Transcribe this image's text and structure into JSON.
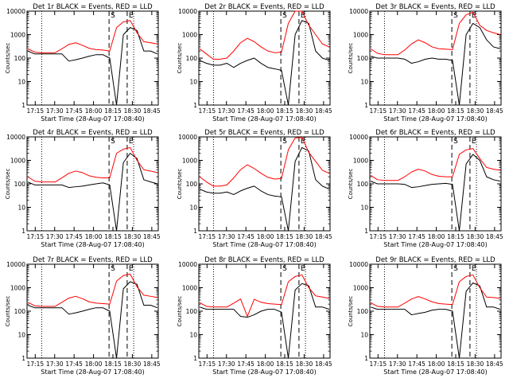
{
  "chart_data": [
    {
      "type": "line",
      "title": "Det 1r BLACK = Events, RED = LLD",
      "xlabel": "Start Time (28-Aug-07 17:08:40)",
      "ylabel": "Counts/sec",
      "yscale": "log",
      "ylim": [
        1,
        10000
      ],
      "ytick_labels": [
        "1",
        "10",
        "100",
        "1000",
        "10000"
      ],
      "xtick_labels": [
        "17:15",
        "17:30",
        "17:45",
        "18:00",
        "18:15",
        "18:30",
        "18:45"
      ],
      "xlim": [
        "17:08:40",
        "18:50:00"
      ],
      "markers": [
        {
          "label": "S",
          "time": "18:12"
        },
        {
          "label": "E",
          "time": "18:26"
        }
      ],
      "dotted_lines": [
        "17:20",
        "18:31"
      ],
      "dashed_lines": [
        "18:12",
        "18:26"
      ],
      "series": [
        {
          "color": "#000000",
          "values": [
            200,
            150,
            150,
            150,
            150,
            150,
            75,
            85,
            100,
            120,
            140,
            140,
            100,
            1,
            1000,
            2000,
            1500,
            200,
            200,
            150
          ]
        },
        {
          "color": "#ff0000",
          "values": [
            250,
            180,
            170,
            170,
            170,
            250,
            380,
            450,
            350,
            260,
            230,
            220,
            200,
            2000,
            3500,
            4000,
            1200,
            500,
            450,
            400
          ]
        }
      ]
    },
    {
      "type": "line",
      "title": "Det 2r BLACK = Events, RED = LLD",
      "xlabel": "Start Time (28-Aug-07 17:08:40)",
      "ylabel": "Counts/sec",
      "yscale": "log",
      "ylim": [
        1,
        10000
      ],
      "ytick_labels": [
        "1",
        "10",
        "100",
        "1000",
        "10000"
      ],
      "xtick_labels": [
        "17:15",
        "17:30",
        "17:45",
        "18:00",
        "18:15",
        "18:30",
        "18:45"
      ],
      "xlim": [
        "17:08:40",
        "18:50:00"
      ],
      "markers": [
        {
          "label": "S",
          "time": "18:12"
        },
        {
          "label": "E",
          "time": "18:26"
        }
      ],
      "dotted_lines": [
        "17:20",
        "18:31"
      ],
      "dashed_lines": [
        "18:12",
        "18:26"
      ],
      "series": [
        {
          "color": "#000000",
          "values": [
            80,
            60,
            50,
            50,
            60,
            40,
            60,
            80,
            100,
            60,
            40,
            35,
            30,
            1,
            1000,
            4000,
            3000,
            200,
            100,
            80
          ]
        },
        {
          "color": "#ff0000",
          "values": [
            250,
            150,
            90,
            90,
            100,
            200,
            450,
            700,
            500,
            300,
            200,
            170,
            180,
            3000,
            10000,
            10000,
            2500,
            1000,
            400,
            300
          ]
        }
      ]
    },
    {
      "type": "line",
      "title": "Det 3r BLACK = Events, RED = LLD",
      "xlabel": "Start Time (28-Aug-07 17:08:40)",
      "ylabel": "Counts/sec",
      "yscale": "log",
      "ylim": [
        1,
        10000
      ],
      "ytick_labels": [
        "1",
        "10",
        "100",
        "1000",
        "10000"
      ],
      "xtick_labels": [
        "17:15",
        "17:30",
        "17:45",
        "18:00",
        "18:15",
        "18:30",
        "18:45"
      ],
      "xlim": [
        "17:08:40",
        "18:50:00"
      ],
      "markers": [
        {
          "label": "S",
          "time": "18:12"
        },
        {
          "label": "E",
          "time": "18:26"
        }
      ],
      "dotted_lines": [
        "17:20",
        "18:31"
      ],
      "dashed_lines": [
        "18:12",
        "18:26"
      ],
      "series": [
        {
          "color": "#000000",
          "values": [
            120,
            100,
            100,
            100,
            100,
            90,
            60,
            70,
            90,
            100,
            90,
            90,
            80,
            1,
            1000,
            3000,
            2000,
            600,
            300,
            250
          ]
        },
        {
          "color": "#ff0000",
          "values": [
            250,
            160,
            140,
            140,
            140,
            220,
            400,
            600,
            450,
            300,
            250,
            240,
            230,
            3000,
            7000,
            9000,
            2500,
            1500,
            1200,
            1000
          ]
        }
      ]
    },
    {
      "type": "line",
      "title": "Det 4r BLACK = Events, RED = LLD",
      "xlabel": "Start Time (28-Aug-07 17:08:40)",
      "ylabel": "Counts/sec",
      "yscale": "log",
      "ylim": [
        1,
        10000
      ],
      "ytick_labels": [
        "1",
        "10",
        "100",
        "1000",
        "10000"
      ],
      "xtick_labels": [
        "17:15",
        "17:30",
        "17:45",
        "18:00",
        "18:15",
        "18:30",
        "18:45"
      ],
      "xlim": [
        "17:08:40",
        "18:50:00"
      ],
      "markers": [
        {
          "label": "S",
          "time": "18:12"
        },
        {
          "label": "E",
          "time": "18:26"
        }
      ],
      "dotted_lines": [
        "17:20",
        "18:31"
      ],
      "dashed_lines": [
        "18:12",
        "18:26"
      ],
      "series": [
        {
          "color": "#000000",
          "values": [
            120,
            90,
            90,
            90,
            90,
            90,
            70,
            75,
            80,
            90,
            100,
            110,
            90,
            1,
            800,
            2000,
            1200,
            150,
            120,
            100
          ]
        },
        {
          "color": "#ff0000",
          "values": [
            200,
            130,
            120,
            120,
            120,
            180,
            280,
            350,
            300,
            220,
            190,
            180,
            180,
            2000,
            3000,
            3500,
            1000,
            400,
            350,
            300
          ]
        }
      ]
    },
    {
      "type": "line",
      "title": "Det 5r BLACK = Events, RED = LLD",
      "xlabel": "Start Time (28-Aug-07 17:08:40)",
      "ylabel": "Counts/sec",
      "yscale": "log",
      "ylim": [
        1,
        10000
      ],
      "ytick_labels": [
        "1",
        "10",
        "100",
        "1000",
        "10000"
      ],
      "xtick_labels": [
        "17:15",
        "17:30",
        "17:45",
        "18:00",
        "18:15",
        "18:30",
        "18:45"
      ],
      "xlim": [
        "17:08:40",
        "18:50:00"
      ],
      "markers": [
        {
          "label": "S",
          "time": "18:12"
        },
        {
          "label": "E",
          "time": "18:26"
        }
      ],
      "dotted_lines": [
        "17:20",
        "18:31"
      ],
      "dashed_lines": [
        "18:12",
        "18:26"
      ],
      "series": [
        {
          "color": "#000000",
          "values": [
            60,
            45,
            40,
            40,
            45,
            35,
            50,
            65,
            80,
            50,
            35,
            30,
            28,
            1,
            900,
            3500,
            2500,
            150,
            80,
            60
          ]
        },
        {
          "color": "#ff0000",
          "values": [
            200,
            120,
            80,
            80,
            90,
            180,
            400,
            650,
            450,
            280,
            190,
            160,
            170,
            2800,
            9000,
            9500,
            2200,
            900,
            380,
            280
          ]
        }
      ]
    },
    {
      "type": "line",
      "title": "Det 6r BLACK = Events, RED = LLD",
      "xlabel": "Start Time (28-Aug-07 17:08:40)",
      "ylabel": "Counts/sec",
      "yscale": "log",
      "ylim": [
        1,
        10000
      ],
      "ytick_labels": [
        "1",
        "10",
        "100",
        "1000",
        "10000"
      ],
      "xtick_labels": [
        "17:15",
        "17:30",
        "17:45",
        "18:00",
        "18:15",
        "18:30",
        "18:45"
      ],
      "xlim": [
        "17:08:40",
        "18:50:00"
      ],
      "markers": [
        {
          "label": "S",
          "time": "18:12"
        },
        {
          "label": "E",
          "time": "18:26"
        }
      ],
      "dotted_lines": [
        "17:20",
        "18:31"
      ],
      "dashed_lines": [
        "18:12",
        "18:26"
      ],
      "series": [
        {
          "color": "#000000",
          "values": [
            130,
            100,
            100,
            100,
            100,
            95,
            70,
            75,
            85,
            95,
            100,
            105,
            95,
            1,
            700,
            1800,
            1000,
            200,
            150,
            130
          ]
        },
        {
          "color": "#ff0000",
          "values": [
            230,
            150,
            140,
            140,
            140,
            200,
            320,
            420,
            350,
            250,
            210,
            200,
            200,
            1800,
            2800,
            3200,
            1200,
            500,
            420,
            380
          ]
        }
      ]
    },
    {
      "type": "line",
      "title": "Det 7r BLACK = Events, RED = LLD",
      "xlabel": "Start Time (28-Aug-07 17:08:40)",
      "ylabel": "Counts/sec",
      "yscale": "log",
      "ylim": [
        1,
        10000
      ],
      "ytick_labels": [
        "1",
        "10",
        "100",
        "1000",
        "10000"
      ],
      "xtick_labels": [
        "17:15",
        "17:30",
        "17:45",
        "18:00",
        "18:15",
        "18:30",
        "18:45"
      ],
      "xlim": [
        "17:08:40",
        "18:50:00"
      ],
      "markers": [
        {
          "label": "S",
          "time": "18:12"
        },
        {
          "label": "E",
          "time": "18:26"
        }
      ],
      "dotted_lines": [
        "17:20",
        "18:31"
      ],
      "dashed_lines": [
        "18:12",
        "18:26"
      ],
      "series": [
        {
          "color": "#000000",
          "values": [
            180,
            140,
            140,
            140,
            140,
            140,
            75,
            85,
            100,
            120,
            140,
            140,
            100,
            1,
            900,
            1800,
            1400,
            180,
            180,
            140
          ]
        },
        {
          "color": "#ff0000",
          "values": [
            240,
            170,
            160,
            160,
            160,
            240,
            360,
            430,
            340,
            250,
            220,
            210,
            200,
            1900,
            3300,
            3800,
            1100,
            480,
            430,
            380
          ]
        }
      ]
    },
    {
      "type": "line",
      "title": "Det 8r BLACK = Events, RED = LLD",
      "xlabel": "Start Time (28-Aug-07 17:08:40)",
      "ylabel": "Counts/sec",
      "yscale": "log",
      "ylim": [
        1,
        10000
      ],
      "ytick_labels": [
        "1",
        "10",
        "100",
        "1000",
        "10000"
      ],
      "xtick_labels": [
        "17:15",
        "17:30",
        "17:45",
        "18:00",
        "18:15",
        "18:30",
        "18:45"
      ],
      "xlim": [
        "17:08:40",
        "18:50:00"
      ],
      "markers": [
        {
          "label": "S",
          "time": "18:12"
        },
        {
          "label": "E",
          "time": "18:26"
        }
      ],
      "dotted_lines": [
        "17:20",
        "18:31"
      ],
      "dashed_lines": [
        "18:12",
        "18:26"
      ],
      "series": [
        {
          "color": "#000000",
          "values": [
            150,
            120,
            120,
            120,
            120,
            120,
            60,
            55,
            70,
            100,
            120,
            120,
            90,
            1,
            800,
            1500,
            1200,
            150,
            150,
            120
          ]
        },
        {
          "color": "#ff0000",
          "values": [
            230,
            160,
            150,
            150,
            150,
            220,
            330,
            60,
            320,
            240,
            210,
            200,
            190,
            1800,
            3000,
            3500,
            1000,
            450,
            400,
            350
          ]
        }
      ]
    },
    {
      "type": "line",
      "title": "Det 9r BLACK = Events, RED = LLD",
      "xlabel": "Start Time (28-Aug-07 17:08:40)",
      "ylabel": "Counts/sec",
      "yscale": "log",
      "ylim": [
        1,
        10000
      ],
      "ytick_labels": [
        "1",
        "10",
        "100",
        "1000",
        "10000"
      ],
      "xtick_labels": [
        "17:15",
        "17:30",
        "17:45",
        "18:00",
        "18:15",
        "18:30",
        "18:45"
      ],
      "xlim": [
        "17:08:40",
        "18:50:00"
      ],
      "markers": [
        {
          "label": "S",
          "time": "18:12"
        },
        {
          "label": "E",
          "time": "18:26"
        }
      ],
      "dotted_lines": [
        "17:20",
        "18:31"
      ],
      "dashed_lines": [
        "18:12",
        "18:26"
      ],
      "series": [
        {
          "color": "#000000",
          "values": [
            150,
            120,
            120,
            120,
            120,
            120,
            70,
            80,
            90,
            110,
            120,
            120,
            100,
            1,
            700,
            1600,
            1200,
            150,
            150,
            120
          ]
        },
        {
          "color": "#ff0000",
          "values": [
            230,
            160,
            150,
            150,
            150,
            220,
            330,
            420,
            330,
            250,
            210,
            200,
            190,
            1800,
            3000,
            3500,
            1000,
            400,
            380,
            350
          ]
        }
      ]
    }
  ]
}
